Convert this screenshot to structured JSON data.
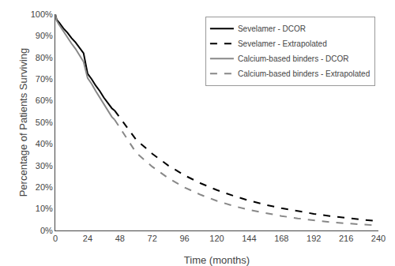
{
  "chart_data": {
    "type": "line",
    "title": "",
    "xlabel": "Time (months)",
    "ylabel": "Percentage of Patients Surviving",
    "xlim": [
      0,
      240
    ],
    "ylim": [
      0,
      1.0
    ],
    "xticks": [
      0,
      24,
      48,
      72,
      96,
      120,
      144,
      168,
      192,
      216,
      240
    ],
    "yticks": [
      {
        "value": 0,
        "label": "0%"
      },
      {
        "value": 0.1,
        "label": "10%"
      },
      {
        "value": 0.2,
        "label": "20%"
      },
      {
        "value": 0.3,
        "label": "30%"
      },
      {
        "value": 0.4,
        "label": "40%"
      },
      {
        "value": 0.5,
        "label": "50%"
      },
      {
        "value": 0.6,
        "label": "60%"
      },
      {
        "value": 0.7,
        "label": "70%"
      },
      {
        "value": 0.8,
        "label": "80%"
      },
      {
        "value": 0.9,
        "label": "90%"
      },
      {
        "value": 1.0,
        "label": "100%"
      }
    ],
    "grid": false,
    "legend": "upper right",
    "series": [
      {
        "name": "Sevelamer - DCOR",
        "color": "#000000",
        "line_style": "solid",
        "x": [
          0,
          1,
          3,
          6,
          9,
          12,
          15,
          18,
          21,
          24,
          27,
          30,
          33,
          36,
          39,
          42,
          44
        ],
        "values": [
          1.0,
          0.975,
          0.96,
          0.935,
          0.915,
          0.89,
          0.87,
          0.845,
          0.82,
          0.725,
          0.7,
          0.67,
          0.645,
          0.615,
          0.59,
          0.565,
          0.555
        ]
      },
      {
        "name": "Sevelamer - Extrapolated",
        "color": "#000000",
        "line_style": "dashed",
        "x": [
          44,
          60,
          72,
          84,
          96,
          108,
          120,
          132,
          144,
          156,
          168,
          180,
          192,
          204,
          216,
          228,
          240
        ],
        "values": [
          0.555,
          0.42,
          0.355,
          0.3,
          0.255,
          0.218,
          0.187,
          0.161,
          0.138,
          0.119,
          0.103,
          0.089,
          0.077,
          0.067,
          0.058,
          0.05,
          0.043
        ]
      },
      {
        "name": "Calcium-based binders - DCOR",
        "color": "#888888",
        "line_style": "solid",
        "x": [
          0,
          1,
          3,
          6,
          9,
          12,
          15,
          18,
          21,
          24,
          27,
          30,
          33,
          36,
          39,
          42,
          44
        ],
        "values": [
          1.0,
          0.97,
          0.95,
          0.92,
          0.895,
          0.865,
          0.84,
          0.81,
          0.78,
          0.705,
          0.678,
          0.645,
          0.615,
          0.583,
          0.553,
          0.525,
          0.513
        ]
      },
      {
        "name": "Calcium-based binders - Extrapolated",
        "color": "#888888",
        "line_style": "dashed",
        "x": [
          44,
          60,
          72,
          84,
          96,
          108,
          120,
          132,
          144,
          156,
          168,
          180,
          192,
          204,
          216,
          228,
          240
        ],
        "values": [
          0.513,
          0.36,
          0.295,
          0.242,
          0.199,
          0.165,
          0.137,
          0.114,
          0.095,
          0.08,
          0.067,
          0.056,
          0.047,
          0.039,
          0.033,
          0.027,
          0.023
        ]
      }
    ]
  }
}
